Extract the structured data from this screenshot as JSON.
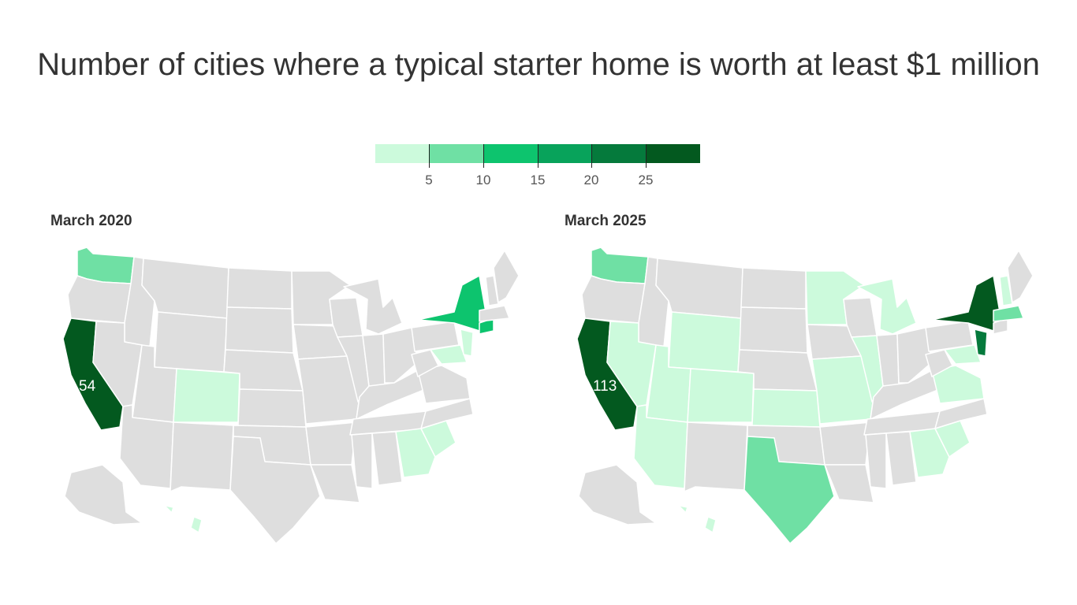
{
  "title": "Number of cities where a typical starter home is worth at least $1 million",
  "legend": {
    "colors": [
      "#ccfadc",
      "#6fe0a4",
      "#0dc46e",
      "#08a35b",
      "#057a3c",
      "#03591f"
    ],
    "ticks": [
      "5",
      "10",
      "15",
      "20",
      "25"
    ]
  },
  "maps": [
    {
      "label": "March 2020",
      "annotation": "54",
      "annotated_state": "California",
      "states": [
        {
          "name": "California",
          "color": "#03591f",
          "value": 54
        },
        {
          "name": "New York",
          "color": "#0dc46e"
        },
        {
          "name": "Washington",
          "color": "#6fe0a4"
        },
        {
          "name": "Colorado",
          "color": "#ccfadc"
        },
        {
          "name": "Georgia",
          "color": "#ccfadc"
        },
        {
          "name": "South Carolina",
          "color": "#ccfadc"
        },
        {
          "name": "Florida",
          "color": "#ccfadc"
        },
        {
          "name": "New Jersey",
          "color": "#ccfadc"
        },
        {
          "name": "Maryland",
          "color": "#ccfadc"
        },
        {
          "name": "Connecticut",
          "color": "#0dc46e"
        },
        {
          "name": "Hawaii",
          "color": "#ccfadc"
        }
      ]
    },
    {
      "label": "March 2025",
      "annotation": "113",
      "annotated_state": "California",
      "states": [
        {
          "name": "California",
          "color": "#03591f",
          "value": 113
        },
        {
          "name": "New York",
          "color": "#03591f"
        },
        {
          "name": "New Jersey",
          "color": "#057a3c"
        },
        {
          "name": "Washington",
          "color": "#6fe0a4"
        },
        {
          "name": "Massachusetts",
          "color": "#6fe0a4"
        },
        {
          "name": "Texas",
          "color": "#6fe0a4"
        },
        {
          "name": "Florida",
          "color": "#0dc46e"
        },
        {
          "name": "Nevada",
          "color": "#ccfadc"
        },
        {
          "name": "Utah",
          "color": "#ccfadc"
        },
        {
          "name": "Arizona",
          "color": "#ccfadc"
        },
        {
          "name": "Wyoming",
          "color": "#ccfadc"
        },
        {
          "name": "Colorado",
          "color": "#ccfadc"
        },
        {
          "name": "Kansas",
          "color": "#ccfadc"
        },
        {
          "name": "Missouri",
          "color": "#ccfadc"
        },
        {
          "name": "Minnesota",
          "color": "#ccfadc"
        },
        {
          "name": "Illinois",
          "color": "#ccfadc"
        },
        {
          "name": "Michigan",
          "color": "#ccfadc"
        },
        {
          "name": "Virginia",
          "color": "#ccfadc"
        },
        {
          "name": "Maryland",
          "color": "#ccfadc"
        },
        {
          "name": "Georgia",
          "color": "#ccfadc"
        },
        {
          "name": "South Carolina",
          "color": "#ccfadc"
        },
        {
          "name": "New Hampshire",
          "color": "#ccfadc"
        },
        {
          "name": "Hawaii",
          "color": "#ccfadc"
        }
      ]
    }
  ],
  "base_color": "#dedede"
}
